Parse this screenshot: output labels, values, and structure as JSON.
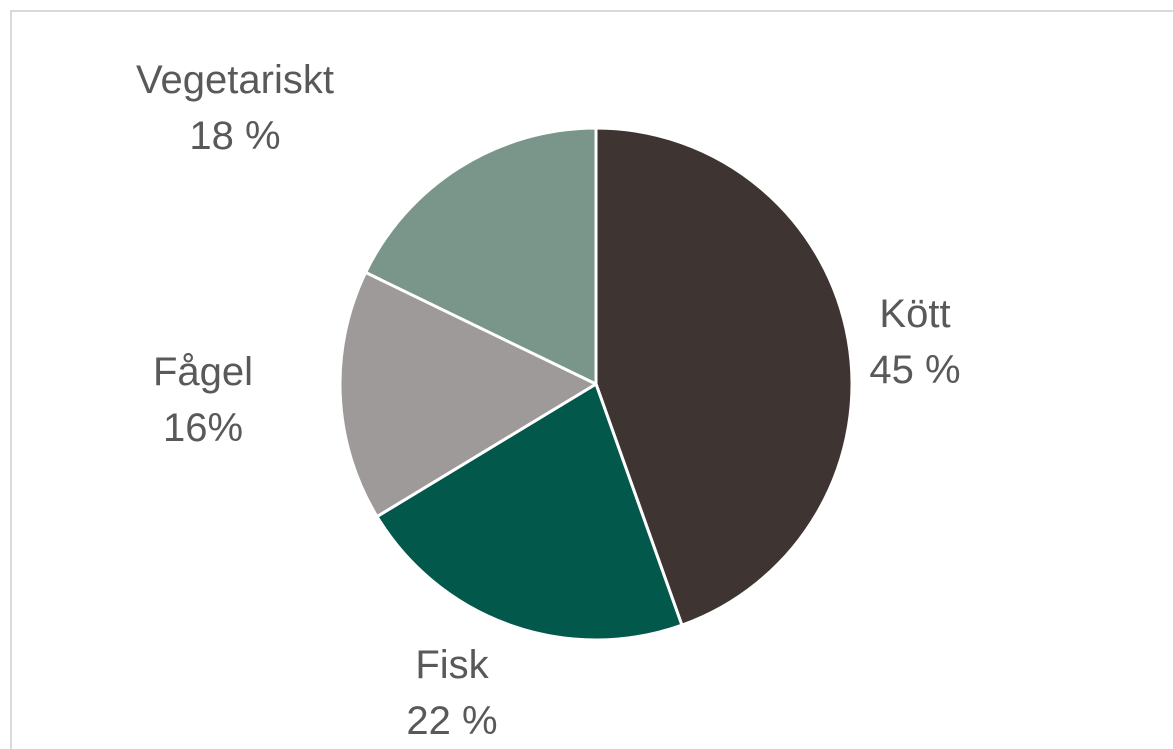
{
  "chart_data": {
    "type": "pie",
    "title": "",
    "slices": [
      {
        "category": "Kött",
        "label": "45 %",
        "value": 45,
        "color": "#3e3532"
      },
      {
        "category": "Fisk",
        "label": "22 %",
        "value": 22,
        "color": "#02584b"
      },
      {
        "category": "Fågel",
        "label": "16%",
        "value": 16,
        "color": "#9e9a99"
      },
      {
        "category": "Vegetariskt",
        "label": "18 %",
        "value": 18,
        "color": "#7a9589"
      }
    ],
    "legend": "none",
    "start_angle": "12 o'clock",
    "direction": "clockwise"
  }
}
